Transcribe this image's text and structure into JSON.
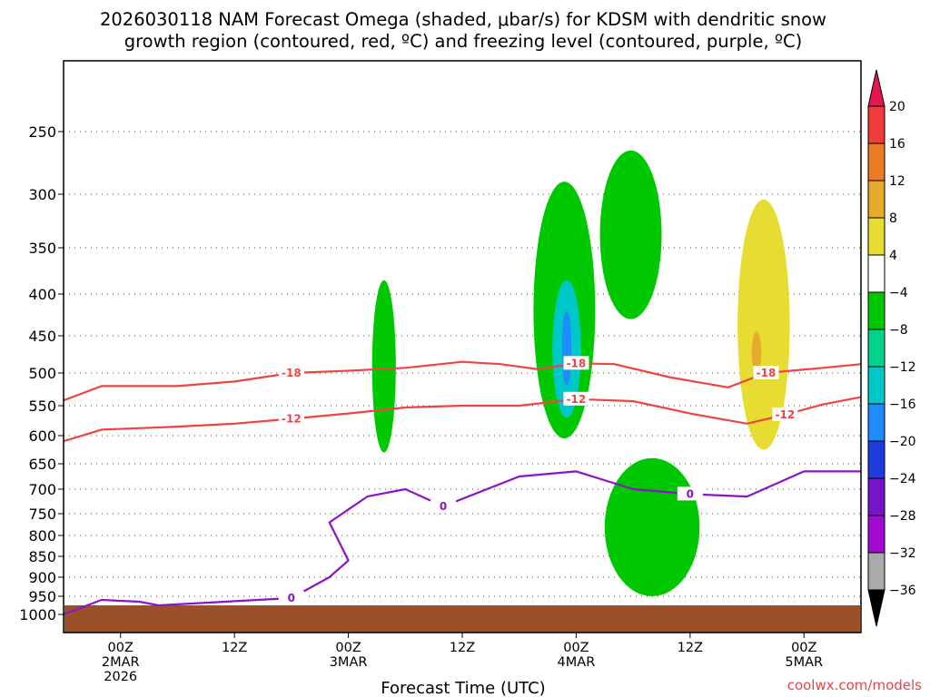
{
  "chart_data": {
    "type": "time-height cross section (filled contour + contour lines)",
    "title_line1": "2026030118 NAM Forecast Omega (shaded, μbar/s) for KDSM with dendritic snow",
    "title_line2": "growth region (contoured, red, ºC) and freezing level (contoured, purple, ºC)",
    "xlabel": "Forecast Time (UTC)",
    "credit": "coolwx.com/models",
    "y_axis": {
      "label": "",
      "units": "hPa",
      "reversed": true,
      "range": [
        200,
        1040
      ],
      "ticks": [
        250,
        300,
        350,
        400,
        450,
        500,
        550,
        600,
        650,
        700,
        750,
        800,
        850,
        900,
        950,
        1000
      ]
    },
    "x_axis": {
      "units": "forecast hours",
      "range": [
        0,
        84
      ],
      "ticks": [
        {
          "hour": 6,
          "lines": [
            "00Z",
            "2MAR",
            "2026"
          ]
        },
        {
          "hour": 18,
          "lines": [
            "12Z"
          ]
        },
        {
          "hour": 30,
          "lines": [
            "00Z",
            "3MAR"
          ]
        },
        {
          "hour": 42,
          "lines": [
            "12Z"
          ]
        },
        {
          "hour": 54,
          "lines": [
            "00Z",
            "4MAR"
          ]
        },
        {
          "hour": 66,
          "lines": [
            "12Z"
          ]
        },
        {
          "hour": 78,
          "lines": [
            "00Z",
            "5MAR"
          ]
        }
      ]
    },
    "colorbar": {
      "levels": [
        "20",
        "16",
        "12",
        "8",
        "4",
        "−4",
        "−8",
        "−12",
        "−16",
        "−20",
        "−24",
        "−28",
        "−32",
        "−36"
      ],
      "colors": [
        "#e8164e",
        "#f03c3c",
        "#ec7a22",
        "#e6aa2c",
        "#e6dc32",
        "#ffffff",
        "#00c800",
        "#00d28c",
        "#00c8c8",
        "#1e8cff",
        "#1e3cdc",
        "#7814c8",
        "#a00ad2",
        "#aaaaaa",
        "#000000"
      ]
    },
    "shaded_regions": [
      {
        "name": "omega-fill-green",
        "value_range": [
          -8,
          -4
        ],
        "color": "#00c800",
        "hours": [
          32.5,
          35
        ],
        "hPa": [
          385,
          630
        ]
      },
      {
        "name": "omega-fill-green",
        "value_range": [
          -8,
          -4
        ],
        "color": "#00c800",
        "hours": [
          49.5,
          56
        ],
        "hPa": [
          290,
          605
        ]
      },
      {
        "name": "omega-fill-cyan",
        "value_range": [
          -16,
          -12
        ],
        "color": "#00c8c8",
        "hours": [
          51.5,
          54.5
        ],
        "hPa": [
          385,
          570
        ]
      },
      {
        "name": "omega-fill-blue",
        "value_range": [
          -20,
          -16
        ],
        "color": "#1e8cff",
        "hours": [
          52.5,
          53.5
        ],
        "hPa": [
          420,
          520
        ]
      },
      {
        "name": "omega-fill-green",
        "value_range": [
          -8,
          -4
        ],
        "color": "#00c800",
        "hours": [
          56.5,
          63
        ],
        "hPa": [
          265,
          430
        ]
      },
      {
        "name": "omega-fill-green",
        "value_range": [
          -8,
          -4
        ],
        "color": "#00c800",
        "hours": [
          57,
          67
        ],
        "hPa": [
          640,
          950
        ]
      },
      {
        "name": "omega-fill-yellow",
        "value_range": [
          4,
          8
        ],
        "color": "#e6dc32",
        "hours": [
          71,
          76.5
        ],
        "hPa": [
          305,
          625
        ]
      },
      {
        "name": "omega-fill-orange",
        "value_range": [
          8,
          12
        ],
        "color": "#e6aa2c",
        "hours": [
          72.5,
          73.5
        ],
        "hPa": [
          445,
          500
        ]
      }
    ],
    "contours": [
      {
        "name": "dgz-minus-18",
        "label": "-18",
        "color": "#ee4444",
        "points": [
          [
            0,
            542
          ],
          [
            4,
            520
          ],
          [
            12,
            520
          ],
          [
            18,
            513
          ],
          [
            24,
            500
          ],
          [
            30,
            497
          ],
          [
            36,
            493
          ],
          [
            42,
            485
          ],
          [
            46,
            488
          ],
          [
            50,
            495
          ],
          [
            54,
            487
          ],
          [
            58,
            488
          ],
          [
            64,
            507
          ],
          [
            70,
            522
          ],
          [
            74,
            500
          ],
          [
            80,
            493
          ],
          [
            84,
            488
          ]
        ]
      },
      {
        "name": "dgz-minus-12",
        "label": "-12",
        "color": "#ee4444",
        "points": [
          [
            0,
            610
          ],
          [
            4,
            590
          ],
          [
            12,
            585
          ],
          [
            18,
            580
          ],
          [
            24,
            572
          ],
          [
            30,
            563
          ],
          [
            36,
            553
          ],
          [
            42,
            550
          ],
          [
            48,
            550
          ],
          [
            54,
            540
          ],
          [
            60,
            543
          ],
          [
            66,
            563
          ],
          [
            72,
            580
          ],
          [
            76,
            565
          ],
          [
            80,
            548
          ],
          [
            84,
            537
          ]
        ]
      },
      {
        "name": "freezing-level-0",
        "label": "0",
        "color": "#8c14c8",
        "points": [
          [
            0,
            1000
          ],
          [
            4,
            960
          ],
          [
            8,
            965
          ],
          [
            10,
            975
          ],
          [
            24,
            955
          ],
          [
            28,
            900
          ],
          [
            30,
            860
          ],
          [
            28,
            770
          ],
          [
            32,
            715
          ],
          [
            36,
            700
          ],
          [
            40,
            735
          ],
          [
            48,
            675
          ],
          [
            54,
            665
          ],
          [
            60,
            700
          ],
          [
            66,
            710
          ],
          [
            72,
            715
          ],
          [
            78,
            665
          ],
          [
            84,
            665
          ]
        ]
      }
    ],
    "ground_fill": {
      "name": "below-ground-fill",
      "color": "#9c5028",
      "top_hPa_range": [
        975,
        985
      ]
    }
  }
}
